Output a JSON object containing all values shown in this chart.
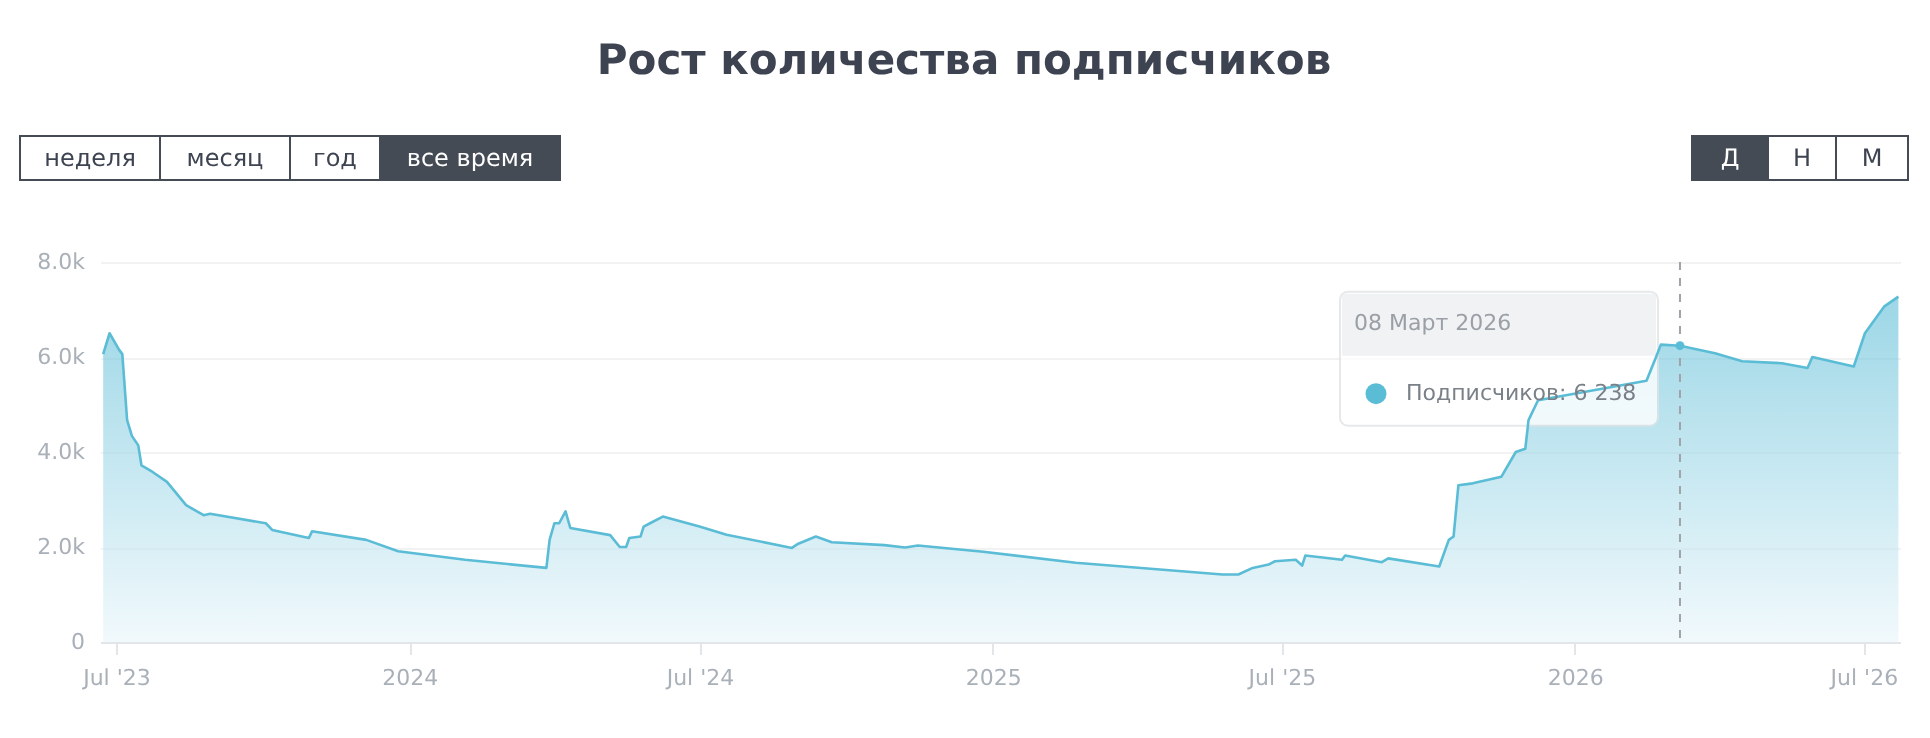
{
  "chart_data": {
    "type": "area",
    "title": "Рост количества подписчиков",
    "x": [
      "2023-06-23",
      "2023-06-27",
      "2023-07-03",
      "2023-07-05",
      "2023-07-08",
      "2023-07-11",
      "2023-07-15",
      "2023-07-17",
      "2023-07-24",
      "2023-08-02",
      "2023-08-14",
      "2023-08-25",
      "2023-08-29",
      "2023-10-03",
      "2023-10-07",
      "2023-10-30",
      "2023-11-01",
      "2023-12-05",
      "2023-12-25",
      "2024-02-05",
      "2024-03-27",
      "2024-03-29",
      "2024-04-01",
      "2024-04-04",
      "2024-04-08",
      "2024-04-11",
      "2024-05-06",
      "2024-05-12",
      "2024-05-16",
      "2024-05-18",
      "2024-05-25",
      "2024-05-27",
      "2024-05-31",
      "2024-06-08",
      "2024-07-01",
      "2024-07-18",
      "2024-08-28",
      "2024-09-01",
      "2024-09-12",
      "2024-09-22",
      "2024-10-25",
      "2024-11-07",
      "2024-11-15",
      "2024-12-26",
      "2025-02-22",
      "2025-05-25",
      "2025-06-04",
      "2025-06-13",
      "2025-06-23",
      "2025-06-27",
      "2025-07-10",
      "2025-07-14",
      "2025-07-16",
      "2025-08-08",
      "2025-08-10",
      "2025-09-02",
      "2025-09-06",
      "2025-10-08",
      "2025-10-14",
      "2025-10-17",
      "2025-10-20",
      "2025-10-29",
      "2025-11-16",
      "2025-11-25",
      "2025-12-01",
      "2025-12-03",
      "2025-12-09",
      "2026-02-15",
      "2026-02-21",
      "2026-02-24",
      "2026-03-08",
      "2026-03-30",
      "2026-04-16",
      "2026-05-11",
      "2026-05-27",
      "2026-05-30",
      "2026-06-25",
      "2026-07-02",
      "2026-07-14",
      "2026-07-23"
    ],
    "series": [
      {
        "color": "#5bbcd6",
        "values": [
          6060,
          6500,
          6150,
          6060,
          4670,
          4340,
          4140,
          3720,
          3580,
          3370,
          2880,
          2670,
          2700,
          2500,
          2360,
          2190,
          2330,
          2150,
          1910,
          1730,
          1560,
          2150,
          2500,
          2500,
          2750,
          2400,
          2250,
          2000,
          2000,
          2190,
          2220,
          2430,
          2500,
          2640,
          2430,
          2260,
          1980,
          2070,
          2220,
          2100,
          2040,
          1990,
          2030,
          1900,
          1670,
          1420,
          1420,
          1560,
          1630,
          1700,
          1730,
          1610,
          1820,
          1730,
          1820,
          1680,
          1760,
          1590,
          2150,
          2220,
          3300,
          3340,
          3480,
          4000,
          4070,
          4670,
          5090,
          5500,
          6000,
          6260,
          6238,
          6080,
          5910,
          5870,
          5770,
          6000,
          5800,
          6500,
          7060,
          7270
        ]
      }
    ],
    "xlim": [
      "2023-06-21",
      "2026-07-24"
    ],
    "xticks": [
      {
        "value": "2023-07-01",
        "label": "Jul '23"
      },
      {
        "value": "2024-01-01",
        "label": "2024"
      },
      {
        "value": "2024-07-01",
        "label": "Jul '24"
      },
      {
        "value": "2025-01-01",
        "label": "2025"
      },
      {
        "value": "2025-07-01",
        "label": "Jul '25"
      },
      {
        "value": "2026-01-01",
        "label": "2026"
      },
      {
        "value": "2026-07-01",
        "label": "Jul '26"
      }
    ],
    "ylim": [
      0,
      8000
    ],
    "yticks": [
      {
        "value": 0,
        "label": "0"
      },
      {
        "value": 2000,
        "label": "2.0k"
      },
      {
        "value": 4000,
        "label": "4.0k"
      },
      {
        "value": 6000,
        "label": "6.0k"
      },
      {
        "value": 8000,
        "label": "8.0k"
      }
    ],
    "grid": "y",
    "ref_lines": [
      {
        "axis": "x",
        "value": "2026-03-08",
        "color": "#a0a4a8",
        "line_style": "dashed"
      }
    ],
    "annotations": [
      "08 Март 2026",
      {
        "text": "Подписчиков: 6 238",
        "x": "2026-03-08",
        "y": 6238
      },
      "неделя",
      "месяц",
      "год",
      "все время",
      "Д",
      "Н",
      "М"
    ]
  }
}
